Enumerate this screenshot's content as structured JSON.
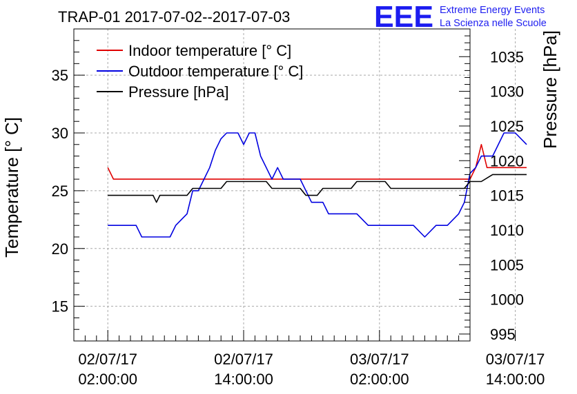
{
  "chart_data": {
    "type": "line",
    "title": "TRAP-01 2017-07-02--2017-07-03",
    "ylabel": "Temperature [° C]",
    "y2label": "Pressure [hPa]",
    "ylim": [
      12,
      39
    ],
    "y2lim": [
      994,
      1039
    ],
    "xlim": [
      -3,
      32
    ],
    "x_unit": "hours since 2017-07-02 02:00:00",
    "yticks": [
      15,
      20,
      25,
      30,
      35
    ],
    "y2ticks": [
      995,
      1000,
      1005,
      1010,
      1015,
      1020,
      1025,
      1030,
      1035
    ],
    "xticks": [
      {
        "x": 0,
        "line1": "02/07/17",
        "line2": "02:00:00"
      },
      {
        "x": 12,
        "line1": "02/07/17",
        "line2": "14:00:00"
      },
      {
        "x": 24,
        "line1": "03/07/17",
        "line2": "02:00:00"
      },
      {
        "x": 36,
        "line1": "03/07/17",
        "line2": "14:00:00"
      }
    ],
    "legend_position": "top-left",
    "series": [
      {
        "name": "Indoor temperature [° C]",
        "color": "#e00000",
        "axis": "left",
        "points": [
          [
            0,
            27
          ],
          [
            0.5,
            26
          ],
          [
            3,
            26
          ],
          [
            6,
            26
          ],
          [
            9,
            26
          ],
          [
            12,
            26
          ],
          [
            15,
            26
          ],
          [
            18,
            26
          ],
          [
            21,
            26
          ],
          [
            24,
            26
          ],
          [
            27,
            26
          ],
          [
            30,
            26
          ],
          [
            32,
            26
          ],
          [
            32.5,
            27
          ],
          [
            33,
            29
          ],
          [
            33.5,
            27
          ],
          [
            35,
            27
          ],
          [
            37,
            27
          ]
        ]
      },
      {
        "name": "Outdoor temperature [° C]",
        "color": "#0000e0",
        "axis": "left",
        "points": [
          [
            0,
            22
          ],
          [
            2.5,
            22
          ],
          [
            3,
            21
          ],
          [
            5.5,
            21
          ],
          [
            6,
            22
          ],
          [
            7,
            23
          ],
          [
            7.5,
            25
          ],
          [
            8,
            25
          ],
          [
            8.5,
            26
          ],
          [
            9,
            27
          ],
          [
            9.5,
            28.5
          ],
          [
            10,
            29.5
          ],
          [
            10.5,
            30
          ],
          [
            11.5,
            30
          ],
          [
            12,
            29
          ],
          [
            12.5,
            30
          ],
          [
            13,
            30
          ],
          [
            13.5,
            28
          ],
          [
            14,
            27
          ],
          [
            14.5,
            26
          ],
          [
            15,
            27
          ],
          [
            15.5,
            26
          ],
          [
            17,
            26
          ],
          [
            18,
            24
          ],
          [
            19,
            24
          ],
          [
            19.5,
            23
          ],
          [
            20,
            23
          ],
          [
            22,
            23
          ],
          [
            23,
            22
          ],
          [
            27,
            22
          ],
          [
            28,
            21
          ],
          [
            29,
            22
          ],
          [
            30,
            22
          ],
          [
            31,
            23
          ],
          [
            31.5,
            24
          ],
          [
            32,
            26.5
          ],
          [
            32.5,
            27
          ],
          [
            33,
            28
          ],
          [
            34,
            28
          ],
          [
            35,
            30
          ],
          [
            36,
            30
          ],
          [
            37,
            29
          ]
        ]
      },
      {
        "name": "Pressure [hPa]",
        "color": "#000000",
        "axis": "right",
        "points": [
          [
            0,
            1015
          ],
          [
            4,
            1015
          ],
          [
            4.3,
            1014
          ],
          [
            4.6,
            1015
          ],
          [
            7,
            1015
          ],
          [
            7.5,
            1016
          ],
          [
            10,
            1016
          ],
          [
            10.5,
            1017
          ],
          [
            14,
            1017
          ],
          [
            14.5,
            1016
          ],
          [
            17,
            1016
          ],
          [
            17.5,
            1015
          ],
          [
            18.5,
            1015
          ],
          [
            19,
            1016
          ],
          [
            21.5,
            1016
          ],
          [
            22,
            1017
          ],
          [
            24.5,
            1017
          ],
          [
            25,
            1016
          ],
          [
            31.5,
            1016
          ],
          [
            32,
            1017
          ],
          [
            33,
            1017
          ],
          [
            34,
            1018
          ],
          [
            37,
            1018
          ]
        ]
      }
    ]
  },
  "logo": {
    "mark": "EEE",
    "line1": "Extreme Energy Events",
    "line2": "La Scienza nelle Scuole",
    "color": "#1d1df0"
  }
}
